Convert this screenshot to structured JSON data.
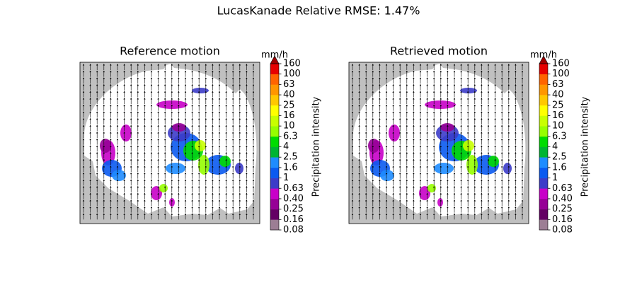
{
  "title": "LucasKanade Relative RMSE: 1.47%",
  "panels": [
    {
      "title": "Reference motion"
    },
    {
      "title": "Retrieved motion"
    }
  ],
  "colorbar": {
    "unit": "mm/h",
    "label": "Precipitation intensity",
    "ticks": [
      0.08,
      0.16,
      0.25,
      {
        "value": 0.4,
        "label": "0.40"
      },
      0.63,
      1,
      1.6,
      2.5,
      4,
      6.3,
      10,
      16,
      25,
      40,
      63,
      100,
      160
    ],
    "colors": [
      "#9c7e94",
      "#640064",
      "#960096",
      "#c800c8",
      "#3c3cc8",
      "#0a5af0",
      "#1e8cff",
      "#00b432",
      "#00dc00",
      "#96ff00",
      "#c8ff00",
      "#ffff00",
      "#ffc800",
      "#ff9600",
      "#ff6400",
      "#e60000"
    ],
    "extend_color": "#a00000"
  }
}
